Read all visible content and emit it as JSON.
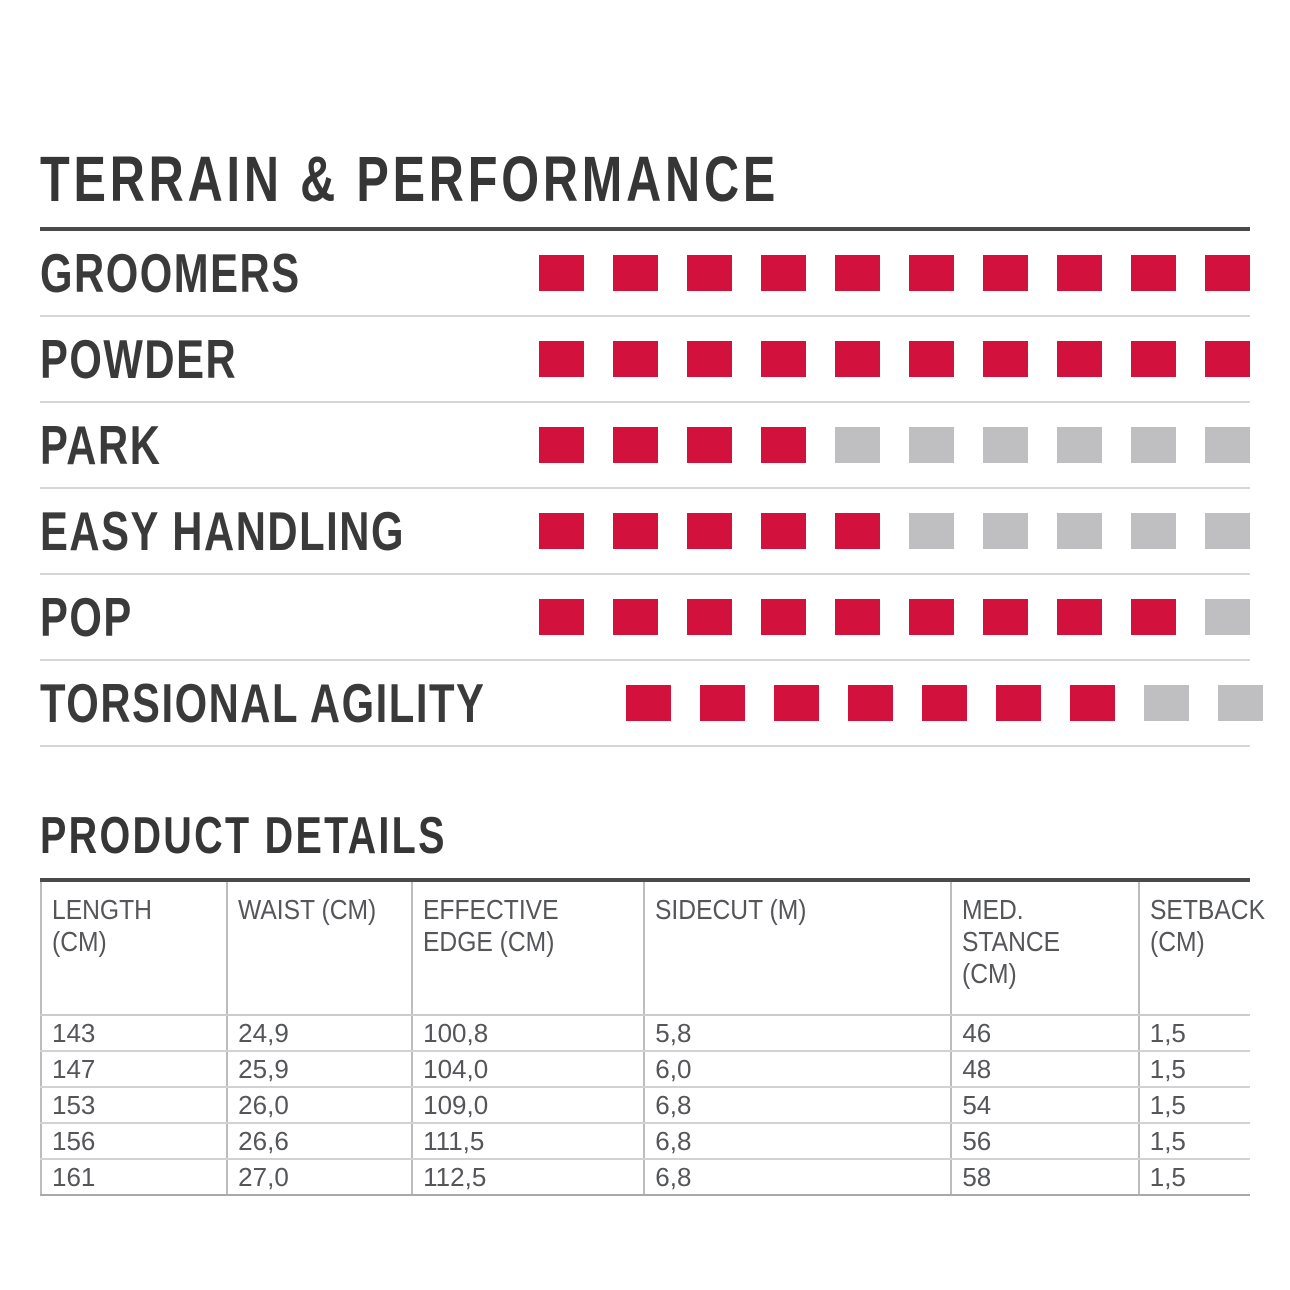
{
  "colors": {
    "filled_square": "#d2123c",
    "empty_square": "#bfbfc1",
    "title_text": "#363636",
    "label_text": "#3a3a3a",
    "table_text": "#55565a",
    "rule_dark": "#4a4a4a",
    "line_light": "#d6d6d6"
  },
  "terrain_performance": {
    "title": "TERRAIN & PERFORMANCE",
    "scale_max": 10,
    "rows": [
      {
        "label": "GROOMERS",
        "value": 10
      },
      {
        "label": "POWDER",
        "value": 10
      },
      {
        "label": "PARK",
        "value": 4
      },
      {
        "label": "EASY HANDLING",
        "value": 5
      },
      {
        "label": "POP",
        "value": 9
      },
      {
        "label": "TORSIONAL AGILITY",
        "value": 7
      }
    ]
  },
  "product_details": {
    "title": "PRODUCT DETAILS",
    "columns": [
      "LENGTH (CM)",
      "WAIST (CM)",
      "EFFECTIVE EDGE (CM)",
      "SIDECUT (M)",
      "MED. STANCE (CM)",
      "SETBACK (CM)"
    ],
    "rows": [
      [
        "143",
        "24,9",
        "100,8",
        "5,8",
        "46",
        "1,5"
      ],
      [
        "147",
        "25,9",
        "104,0",
        "6,0",
        "48",
        "1,5"
      ],
      [
        "153",
        "26,0",
        "109,0",
        "6,8",
        "54",
        "1,5"
      ],
      [
        "156",
        "26,6",
        "111,5",
        "6,8",
        "56",
        "1,5"
      ],
      [
        "161",
        "27,0",
        "112,5",
        "6,8",
        "58",
        "1,5"
      ]
    ]
  },
  "chart_data": {
    "type": "bar",
    "title": "TERRAIN & PERFORMANCE",
    "categories": [
      "GROOMERS",
      "POWDER",
      "PARK",
      "EASY HANDLING",
      "POP",
      "TORSIONAL AGILITY"
    ],
    "values": [
      10,
      10,
      4,
      5,
      9,
      7
    ],
    "ylim": [
      0,
      10
    ],
    "legend_position": "none",
    "grid": false
  }
}
